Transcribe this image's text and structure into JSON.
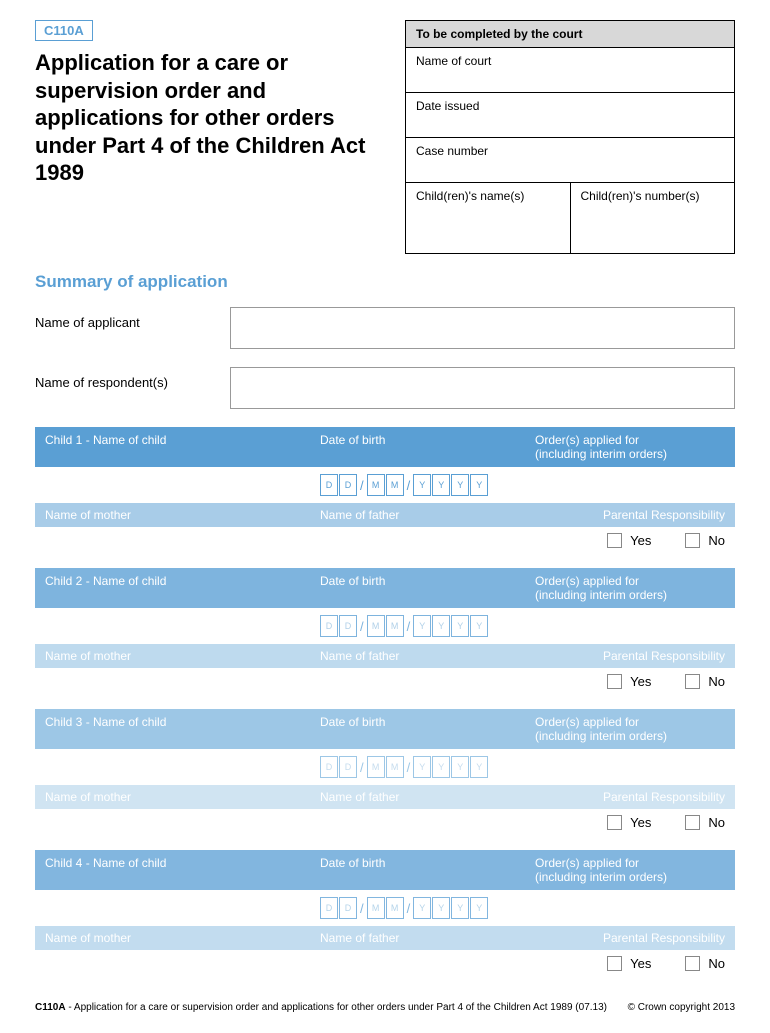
{
  "form_code": "C110A",
  "main_title": "Application for a care or supervision order and applications for other orders under Part 4 of the Children Act 1989",
  "court_box": {
    "header": "To be completed by the court",
    "name_of_court": "Name of court",
    "date_issued": "Date issued",
    "case_number": "Case number",
    "children_names": "Child(ren)'s name(s)",
    "children_numbers": "Child(ren)'s number(s)"
  },
  "section_title": "Summary of application",
  "name_of_applicant": "Name of applicant",
  "name_of_respondents": "Name of respondent(s)",
  "child_headers": {
    "name_prefix": "Name of child",
    "dob": "Date of birth",
    "orders": "Order(s) applied for\n(including interim orders)",
    "mother": "Name of mother",
    "father": "Name of father",
    "responsibility": "Parental Responsibility"
  },
  "date_placeholders": [
    "D",
    "D",
    "M",
    "M",
    "Y",
    "Y",
    "Y",
    "Y"
  ],
  "yes": "Yes",
  "no": "No",
  "children": [
    {
      "num": "1",
      "dark": "c1-dark",
      "light": "c1-light",
      "box": "c1-box",
      "sep": "c1-sep"
    },
    {
      "num": "2",
      "dark": "c2-dark",
      "light": "c2-light",
      "box": "c2-box",
      "sep": "c2-sep"
    },
    {
      "num": "3",
      "dark": "c3-dark",
      "light": "c3-light",
      "box": "c3-box",
      "sep": "c3-sep"
    },
    {
      "num": "4",
      "dark": "c4-dark",
      "light": "c4-light",
      "box": "c4-box",
      "sep": "c4-sep"
    }
  ],
  "footer": {
    "code": "C110A",
    "desc": " - Application for a care or supervision order and applications for other orders under Part 4 of the Children Act 1989 (07.13)",
    "copyright": "© Crown copyright 2013"
  }
}
